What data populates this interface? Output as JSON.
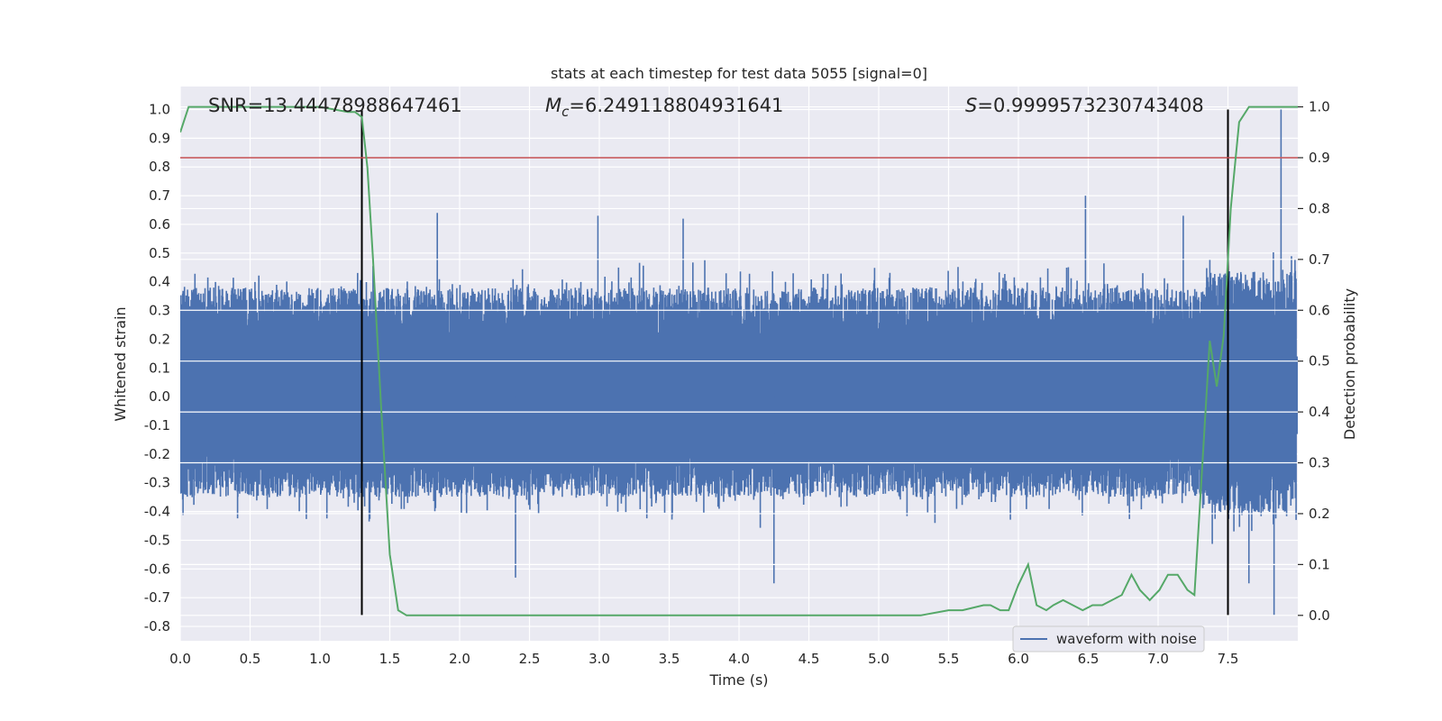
{
  "chart_data": {
    "type": "line",
    "title": "stats at each timestep for test data 5055 [signal=0]",
    "xlabel": "Time (s)",
    "ylabel_left": "Whitened strain",
    "ylabel_right": "Detection probability",
    "xlim": [
      0,
      8
    ],
    "ylim_left": [
      -0.85,
      1.08
    ],
    "ylim_right": [
      -0.05,
      1.04
    ],
    "x_ticks": [
      "0.0",
      "0.5",
      "1.0",
      "1.5",
      "2.0",
      "2.5",
      "3.0",
      "3.5",
      "4.0",
      "4.5",
      "5.0",
      "5.5",
      "6.0",
      "6.5",
      "7.0",
      "7.5"
    ],
    "y_ticks_left": [
      "-0.8",
      "-0.7",
      "-0.6",
      "-0.5",
      "-0.4",
      "-0.3",
      "-0.2",
      "-0.1",
      "0.0",
      "0.1",
      "0.2",
      "0.3",
      "0.4",
      "0.5",
      "0.6",
      "0.7",
      "0.8",
      "0.9",
      "1.0"
    ],
    "y_ticks_right": [
      "0.0",
      "0.1",
      "0.2",
      "0.3",
      "0.4",
      "0.5",
      "0.6",
      "0.7",
      "0.8",
      "0.9",
      "1.0"
    ],
    "grid": true,
    "legend_placement": "lower-right",
    "annotations": {
      "snr": "SNR=13.44478988647461",
      "mc_symbol": "M",
      "mc_sub": "c",
      "mc_value": "=6.249118804931641",
      "s_symbol": "S",
      "s_value": "=0.9999573230743408"
    },
    "threshold": {
      "value": 0.9,
      "axis": "right",
      "color": "#c44e52"
    },
    "vertical_markers": [
      {
        "x": 1.3,
        "y_range": [
          -0.76,
          1.0
        ],
        "color": "#000000"
      },
      {
        "x": 7.5,
        "y_range": [
          -0.76,
          1.0
        ],
        "color": "#000000"
      }
    ],
    "series": [
      {
        "name": "waveform with noise",
        "axis": "left",
        "color": "#4c72b0",
        "style": "dense noise trace",
        "sample_rate_hz": 2048,
        "envelope_typical": [
          -0.35,
          0.38
        ],
        "notable_peaks": [
          {
            "x": 1.84,
            "y": 0.64
          },
          {
            "x": 2.99,
            "y": 0.63
          },
          {
            "x": 3.6,
            "y": 0.62
          },
          {
            "x": 6.48,
            "y": 0.7
          },
          {
            "x": 7.18,
            "y": 0.63
          },
          {
            "x": 7.88,
            "y": 1.0
          },
          {
            "x": 2.4,
            "y": -0.63
          },
          {
            "x": 4.25,
            "y": -0.65
          },
          {
            "x": 7.83,
            "y": -0.76
          },
          {
            "x": 7.65,
            "y": -0.65
          }
        ]
      },
      {
        "name": "",
        "axis": "right",
        "color": "#55a868",
        "x": [
          0.0,
          0.06,
          0.15,
          0.5,
          1.0,
          1.2,
          1.25,
          1.3,
          1.34,
          1.38,
          1.44,
          1.5,
          1.56,
          1.62,
          1.7,
          2.0,
          2.5,
          3.0,
          3.5,
          3.9,
          4.2,
          4.4,
          4.5,
          4.7,
          5.0,
          5.3,
          5.5,
          5.6,
          5.75,
          5.8,
          5.87,
          5.93,
          6.0,
          6.07,
          6.13,
          6.2,
          6.25,
          6.32,
          6.39,
          6.46,
          6.53,
          6.6,
          6.67,
          6.74,
          6.81,
          6.87,
          6.94,
          7.01,
          7.07,
          7.14,
          7.21,
          7.26,
          7.3,
          7.37,
          7.42,
          7.47,
          7.52,
          7.58,
          7.65,
          7.7,
          8.0
        ],
        "y": [
          0.95,
          1.0,
          1.0,
          1.0,
          1.0,
          0.99,
          0.99,
          0.98,
          0.88,
          0.7,
          0.4,
          0.12,
          0.01,
          0.0,
          0.0,
          0.0,
          0.0,
          0.0,
          0.0,
          0.0,
          0.0,
          0.0,
          0.0,
          0.0,
          0.0,
          0.0,
          0.01,
          0.01,
          0.02,
          0.02,
          0.01,
          0.01,
          0.06,
          0.1,
          0.02,
          0.01,
          0.02,
          0.03,
          0.02,
          0.01,
          0.02,
          0.02,
          0.03,
          0.04,
          0.08,
          0.05,
          0.03,
          0.05,
          0.08,
          0.08,
          0.05,
          0.04,
          0.22,
          0.54,
          0.45,
          0.55,
          0.8,
          0.97,
          1.0,
          1.0,
          1.0
        ]
      }
    ]
  }
}
